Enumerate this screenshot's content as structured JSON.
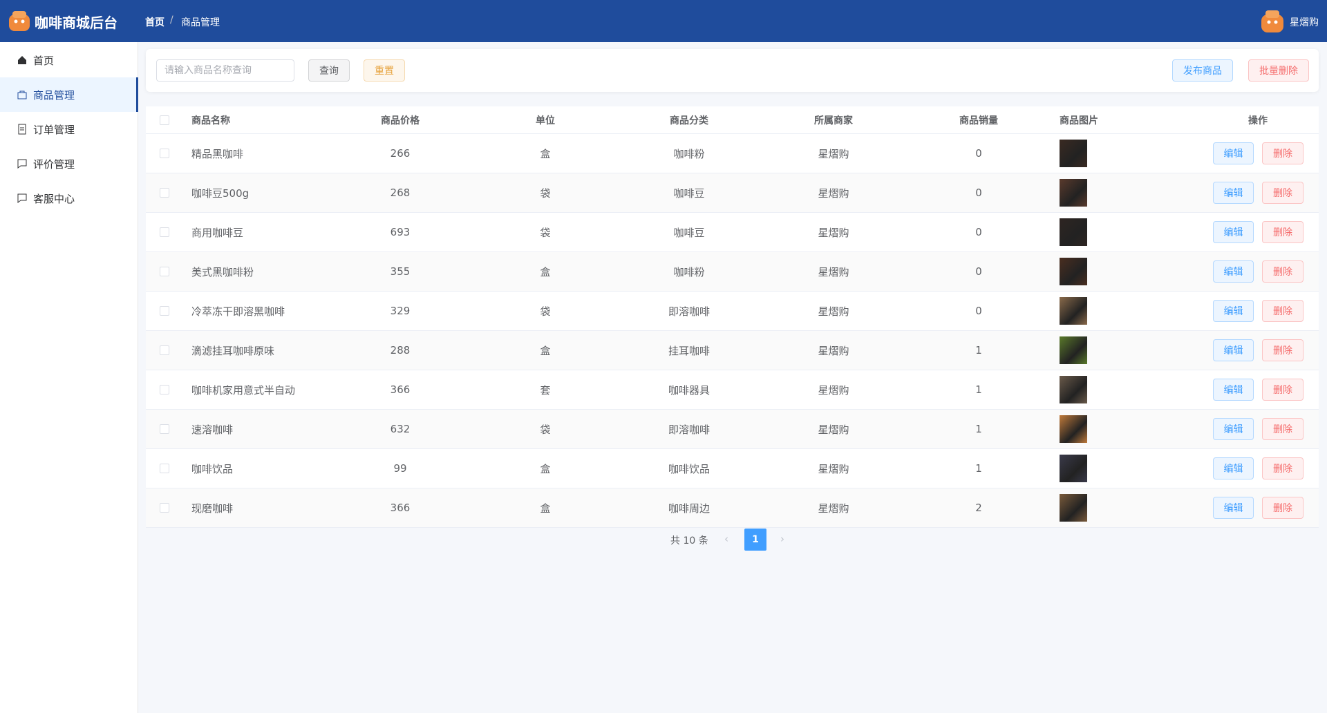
{
  "header": {
    "title": "咖啡商城后台",
    "breadcrumb": [
      "首页",
      "商品管理"
    ],
    "user": "星熠购"
  },
  "sidebar": {
    "items": [
      "首页",
      "商品管理",
      "订单管理",
      "评价管理",
      "客服中心"
    ],
    "active": 1
  },
  "toolbar": {
    "search_placeholder": "请输入商品名称查询",
    "query": "查询",
    "reset": "重置",
    "publish": "发布商品",
    "batch_delete": "批量删除"
  },
  "table": {
    "columns": [
      "商品名称",
      "商品价格",
      "单位",
      "商品分类",
      "所属商家",
      "商品销量",
      "商品图片",
      "操作"
    ],
    "rows": [
      [
        "精品黑咖啡",
        266,
        "盒",
        "咖啡粉",
        "星熠购",
        0
      ],
      [
        "咖啡豆500g",
        268,
        "袋",
        "咖啡豆",
        "星熠购",
        0
      ],
      [
        "商用咖啡豆",
        693,
        "袋",
        "咖啡豆",
        "星熠购",
        0
      ],
      [
        "美式黑咖啡粉",
        355,
        "盒",
        "咖啡粉",
        "星熠购",
        0
      ],
      [
        "冷萃冻干即溶黑咖啡",
        329,
        "袋",
        "即溶咖啡",
        "星熠购",
        0
      ],
      [
        "滴滤挂耳咖啡原味",
        288,
        "盒",
        "挂耳咖啡",
        "星熠购",
        1
      ],
      [
        "咖啡机家用意式半自动",
        366,
        "套",
        "咖啡器具",
        "星熠购",
        1
      ],
      [
        "速溶咖啡",
        632,
        "袋",
        "即溶咖啡",
        "星熠购",
        1
      ],
      [
        "咖啡饮品",
        99,
        "盒",
        "咖啡饮品",
        "星熠购",
        1
      ],
      [
        "现磨咖啡",
        366,
        "盒",
        "咖啡周边",
        "星熠购",
        2
      ]
    ],
    "actions": [
      "编辑",
      "删除"
    ]
  },
  "pagination": {
    "total": "共 10 条",
    "page": "1"
  }
}
